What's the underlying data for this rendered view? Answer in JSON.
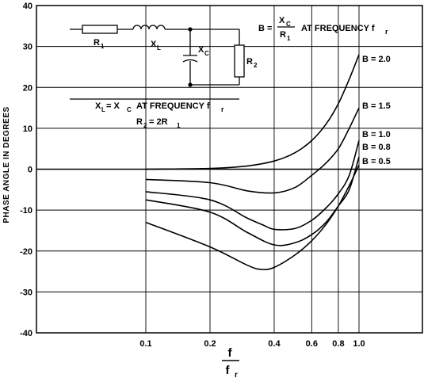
{
  "chart_data": {
    "type": "line",
    "ylabel": "PHASE ANGLE IN DEGREES",
    "xlabel_num": "f",
    "xlabel_den": "f",
    "xlabel_den_sub": "r",
    "ylim": [
      -40,
      40
    ],
    "yticks": [
      40,
      30,
      20,
      10,
      0,
      -10,
      -20,
      -30,
      -40
    ],
    "xticks": [
      {
        "value": 0.1,
        "label": "0.1"
      },
      {
        "value": 0.2,
        "label": "0.2"
      },
      {
        "value": 0.4,
        "label": "0.4"
      },
      {
        "value": 0.6,
        "label": "0.6"
      },
      {
        "value": 0.8,
        "label": "0.8"
      },
      {
        "value": 1.0,
        "label": "1.0"
      }
    ],
    "x_scale": "log",
    "grid": true,
    "series": [
      {
        "name": "B = 2.0",
        "x": [
          0.1,
          0.2,
          0.3,
          0.4,
          0.5,
          0.6,
          0.7,
          0.8,
          0.9,
          1.0
        ],
        "y": [
          0,
          0.2,
          0.8,
          2,
          4,
          7,
          11,
          16,
          22,
          28
        ]
      },
      {
        "name": "B = 1.5",
        "x": [
          0.1,
          0.2,
          0.3,
          0.4,
          0.5,
          0.6,
          0.7,
          0.8,
          0.9,
          1.0
        ],
        "y": [
          -2.5,
          -3.3,
          -5.3,
          -5.8,
          -4.5,
          -1.5,
          1.5,
          5,
          10,
          15
        ]
      },
      {
        "name": "B = 1.0",
        "x": [
          0.1,
          0.2,
          0.3,
          0.35,
          0.4,
          0.5,
          0.6,
          0.7,
          0.8,
          0.9,
          1.0
        ],
        "y": [
          -5.5,
          -7.5,
          -12,
          -13.5,
          -14.7,
          -14.5,
          -12.5,
          -9.5,
          -6,
          -1.5,
          7
        ]
      },
      {
        "name": "B = 0.8",
        "x": [
          0.1,
          0.2,
          0.3,
          0.4,
          0.5,
          0.6,
          0.7,
          0.8,
          0.9,
          1.0
        ],
        "y": [
          -7.5,
          -10.5,
          -15.5,
          -18.5,
          -18,
          -16,
          -13,
          -9,
          -5,
          3
        ]
      },
      {
        "name": "B = 0.5",
        "x": [
          0.1,
          0.2,
          0.3,
          0.35,
          0.4,
          0.5,
          0.6,
          0.7,
          0.8,
          0.9,
          1.0
        ],
        "y": [
          -13,
          -19,
          -23.5,
          -24.5,
          -24,
          -21,
          -17.5,
          -13.5,
          -9,
          -4,
          1
        ]
      }
    ],
    "annotations": {
      "b_def_lhs": "B =",
      "b_def_num": "X",
      "b_def_num_sub": "C",
      "b_def_den": "R",
      "b_def_den_sub": "1",
      "b_def_rhs": "AT FREQUENCY f",
      "b_def_rhs_sub": "r",
      "cond1_a": "X",
      "cond1_a_sub": "L",
      "cond1_eq": "= X",
      "cond1_b_sub": "C",
      "cond1_rhs": "AT FREQUENCY f",
      "cond1_rhs_sub": "r",
      "cond2": "R",
      "cond2_sub": "2",
      "cond2_rhs": "= 2R",
      "cond2_rhs_sub": "1"
    },
    "circuit": {
      "r1": "R",
      "r1_sub": "1",
      "xl": "X",
      "xl_sub": "L",
      "xc": "X",
      "xc_sub": "C",
      "r2": "R",
      "r2_sub": "2"
    }
  }
}
